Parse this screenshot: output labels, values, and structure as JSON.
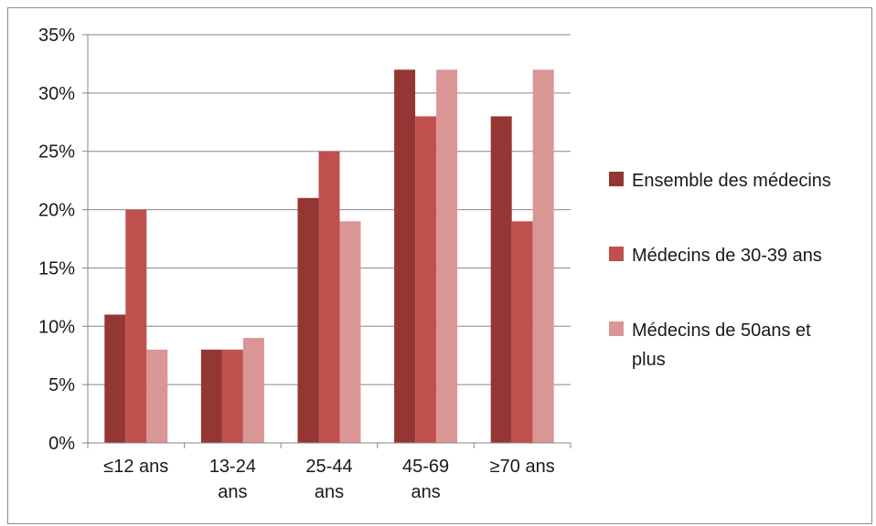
{
  "chart_data": {
    "type": "bar",
    "categories": [
      "≤12 ans",
      "13-24 ans",
      "25-44 ans",
      "45-69 ans",
      "≥70 ans"
    ],
    "category_lines": [
      [
        "≤12 ans"
      ],
      [
        "13-24",
        "ans"
      ],
      [
        "25-44",
        "ans"
      ],
      [
        "45-69",
        "ans"
      ],
      [
        "≥70 ans"
      ]
    ],
    "series": [
      {
        "name": "Ensemble des médecins",
        "values": [
          11,
          8,
          21,
          32,
          28
        ],
        "color": "#943634"
      },
      {
        "name": "Médecins de 30-39 ans",
        "values": [
          20,
          8,
          25,
          28,
          19
        ],
        "color": "#C0504D"
      },
      {
        "name": "Médecins de 50ans et plus",
        "values": [
          8,
          9,
          19,
          32,
          32
        ],
        "color": "#D99694"
      }
    ],
    "legend_lines": [
      [
        "Ensemble des médecins"
      ],
      [
        "Médecins de 30-39 ans"
      ],
      [
        "Médecins de 50ans et",
        "plus"
      ]
    ],
    "yticks": [
      0,
      5,
      10,
      15,
      20,
      25,
      30,
      35
    ],
    "ytick_labels": [
      "0%",
      "5%",
      "10%",
      "15%",
      "20%",
      "25%",
      "30%",
      "35%"
    ],
    "ylim": [
      0,
      35
    ],
    "y_unit": "%",
    "grid": true,
    "legend_position": "right",
    "title": "",
    "xlabel": "",
    "ylabel": ""
  }
}
